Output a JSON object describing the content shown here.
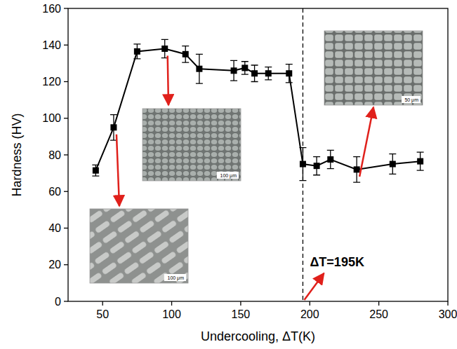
{
  "chart_data": {
    "type": "line",
    "xlabel": "Undercooling, ΔT(K)",
    "ylabel": "Hardness (HV)",
    "x": [
      45,
      58,
      75,
      95,
      110,
      120,
      145,
      153,
      160,
      170,
      185,
      195,
      205,
      215,
      234,
      260,
      280
    ],
    "values": [
      71.5,
      95,
      136.5,
      138,
      135,
      127,
      126,
      127.5,
      124.5,
      124.5,
      124.5,
      75,
      74,
      77.5,
      72,
      75,
      76.5
    ],
    "errors": [
      3,
      7,
      4,
      5,
      4.5,
      8,
      5.5,
      3.5,
      4.5,
      3.5,
      5,
      9,
      5,
      5,
      7,
      5.5,
      5
    ],
    "color": "#000000",
    "marker": "square",
    "line_style": "solid",
    "xlim": [
      25,
      300
    ],
    "ylim": [
      0,
      160
    ],
    "xticks": [
      50,
      100,
      150,
      200,
      250,
      300
    ],
    "yticks": [
      0,
      20,
      40,
      60,
      80,
      100,
      120,
      140,
      160
    ],
    "annotations": [
      {
        "text": "ΔT=195K",
        "x": 195
      }
    ],
    "insets": [
      {
        "scale_label": "100 μm"
      },
      {
        "scale_label": "100 μm"
      },
      {
        "scale_label": "50 μm"
      }
    ]
  }
}
